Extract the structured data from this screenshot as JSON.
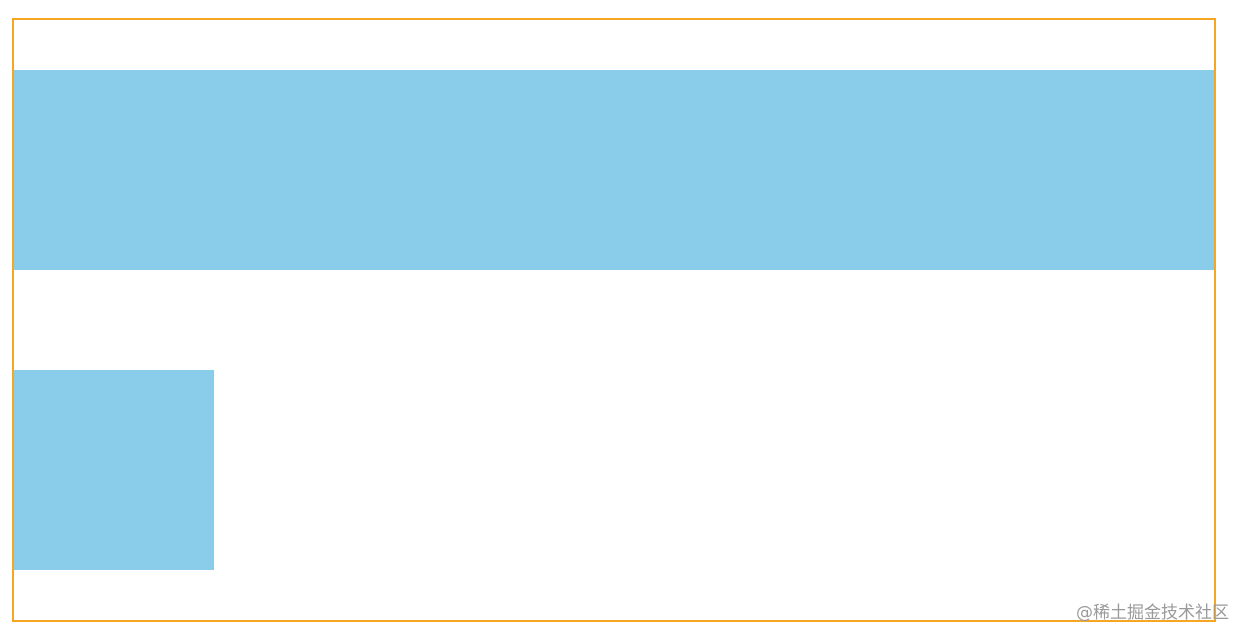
{
  "colors": {
    "border": "#f5a623",
    "block_fill": "#89cdea",
    "watermark": "#9a9a9a"
  },
  "watermark": {
    "text": "@稀土掘金技术社区"
  }
}
